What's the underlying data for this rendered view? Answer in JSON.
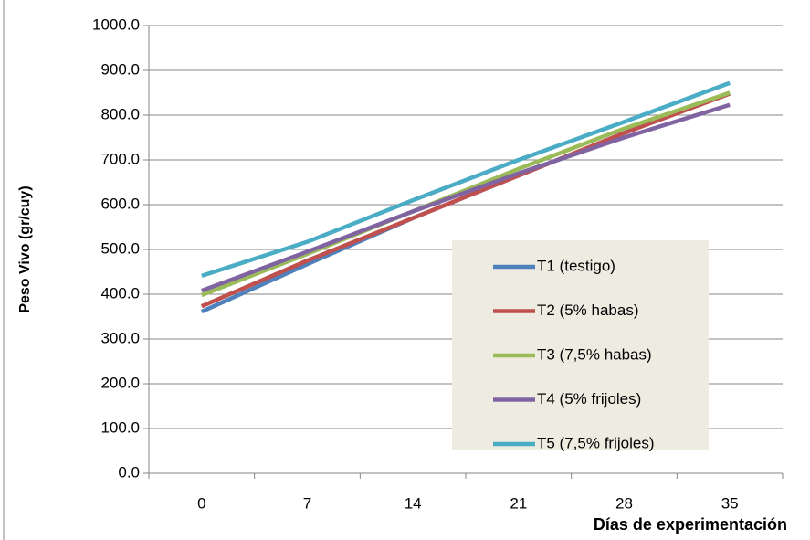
{
  "chart_data": {
    "type": "line",
    "xlabel": "Días de experimentación",
    "ylabel": "Peso Vivo (gr/cuy)",
    "categories": [
      "0",
      "7",
      "14",
      "21",
      "28",
      "35"
    ],
    "series": [
      {
        "name": "T1 (testigo)",
        "color": "#4f81bd",
        "values": [
          361,
          467,
          570,
          665,
          760,
          850
        ]
      },
      {
        "name": "T2 (5% habas)",
        "color": "#c0504d",
        "values": [
          373,
          475,
          570,
          665,
          760,
          848
        ]
      },
      {
        "name": "T3 (7,5% habas)",
        "color": "#9bbb59",
        "values": [
          398,
          490,
          585,
          680,
          770,
          850
        ]
      },
      {
        "name": "T4 (5% frijoles)",
        "color": "#8064a2",
        "values": [
          408,
          495,
          585,
          670,
          750,
          823
        ]
      },
      {
        "name": "T5 (7,5% frijoles)",
        "color": "#4bacc6",
        "values": [
          441,
          517,
          610,
          700,
          785,
          872
        ]
      }
    ],
    "ylim": [
      0,
      1000
    ],
    "yticks": [
      {
        "value": 0,
        "label": "0.0"
      },
      {
        "value": 100,
        "label": "100.0"
      },
      {
        "value": 200,
        "label": "200.0"
      },
      {
        "value": 300,
        "label": "300.0"
      },
      {
        "value": 400,
        "label": "400.0"
      },
      {
        "value": 500,
        "label": "500.0"
      },
      {
        "value": 600,
        "label": "600.0"
      },
      {
        "value": 700,
        "label": "700.0"
      },
      {
        "value": 800,
        "label": "800.0"
      },
      {
        "value": 900,
        "label": "900.0"
      },
      {
        "value": 1000,
        "label": "1000.0"
      }
    ],
    "grid": true
  }
}
